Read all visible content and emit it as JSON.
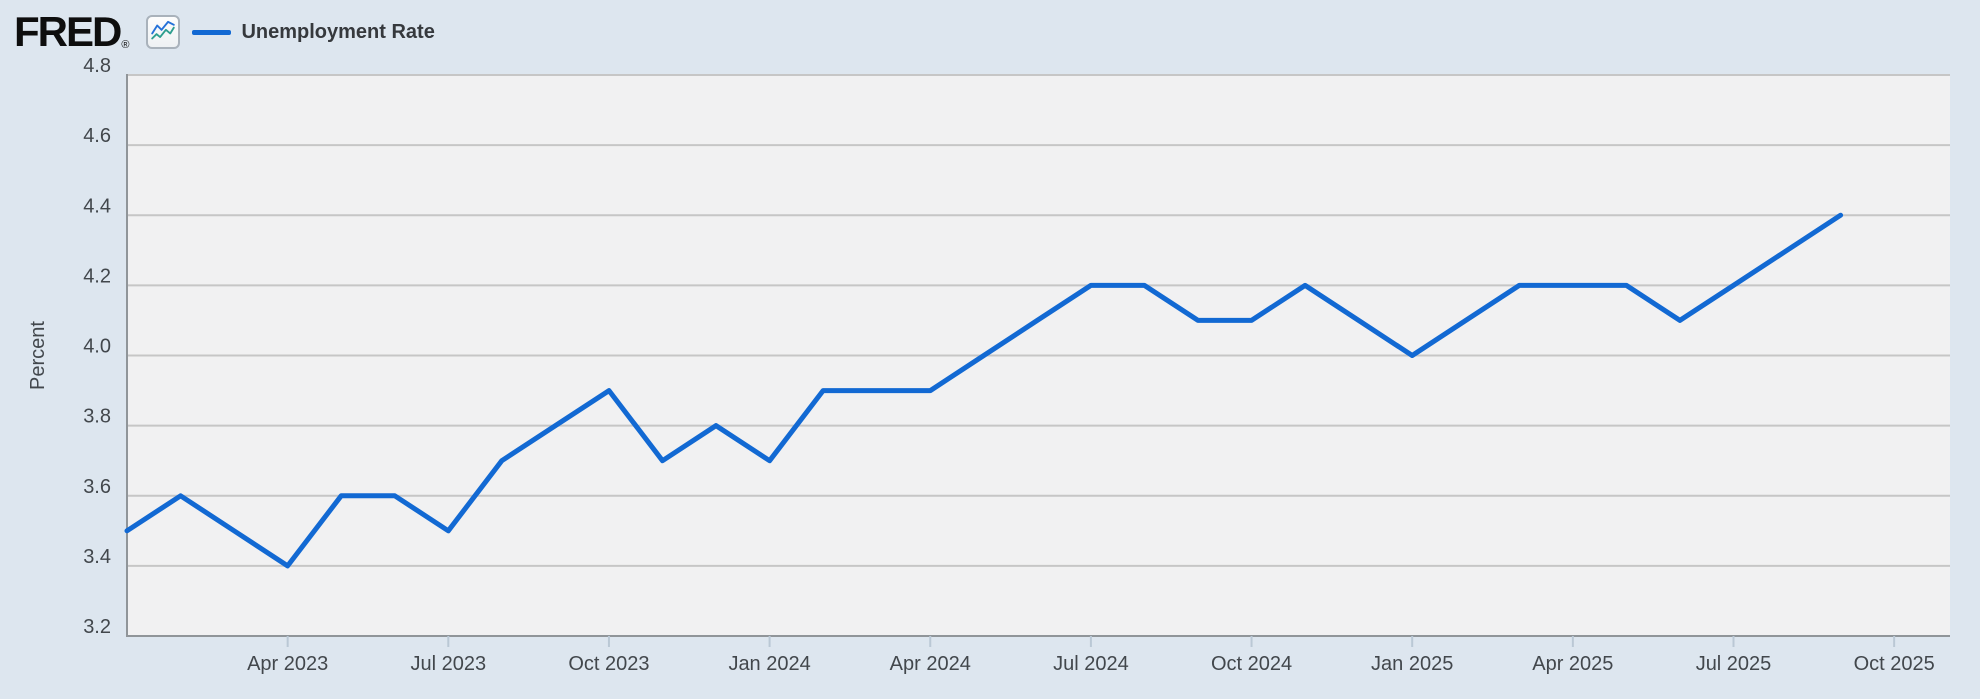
{
  "header": {
    "logo_text": "FRED",
    "registered_mark": "®",
    "legend": {
      "series_label": "Unemployment Rate"
    }
  },
  "colors": {
    "page_bg": "#dde6ef",
    "plot_bg": "#f1f1f2",
    "gridline": "#c6c6c6",
    "axis_line": "#909599",
    "tick_mark": "#bac8d5",
    "axis_text": "#42474c",
    "series_line": "#1269d3",
    "logo_icon_blue": "#2471d9",
    "logo_icon_teal": "#2e9e8f"
  },
  "chart_data": {
    "type": "line",
    "title": "Unemployment Rate",
    "ylabel": "Percent",
    "ylim": [
      3.2,
      4.8
    ],
    "ytick_labels": [
      "3.2",
      "3.4",
      "3.6",
      "3.8",
      "4.0",
      "4.2",
      "4.4",
      "4.6",
      "4.8"
    ],
    "grid": "horizontal",
    "legend_position": "top-left",
    "x": [
      "2023-01",
      "2023-02",
      "2023-03",
      "2023-04",
      "2023-05",
      "2023-06",
      "2023-07",
      "2023-08",
      "2023-09",
      "2023-10",
      "2023-11",
      "2023-12",
      "2024-01",
      "2024-02",
      "2024-03",
      "2024-04",
      "2024-05",
      "2024-06",
      "2024-07",
      "2024-08",
      "2024-09",
      "2024-10",
      "2024-11",
      "2024-12",
      "2025-01",
      "2025-02",
      "2025-03",
      "2025-04",
      "2025-05",
      "2025-06",
      "2025-07",
      "2025-08",
      "2025-09"
    ],
    "values": [
      3.5,
      3.6,
      3.5,
      3.4,
      3.6,
      3.6,
      3.5,
      3.7,
      3.8,
      3.9,
      3.7,
      3.8,
      3.7,
      3.9,
      3.9,
      3.9,
      4.0,
      4.1,
      4.2,
      4.2,
      4.1,
      4.1,
      4.2,
      4.1,
      4.0,
      4.1,
      4.2,
      4.2,
      4.2,
      4.1,
      4.2,
      4.3,
      4.4
    ],
    "xticks": [
      {
        "label": "Apr 2023",
        "month_index": 3
      },
      {
        "label": "Jul 2023",
        "month_index": 6
      },
      {
        "label": "Oct 2023",
        "month_index": 9
      },
      {
        "label": "Jan 2024",
        "month_index": 12
      },
      {
        "label": "Apr 2024",
        "month_index": 15
      },
      {
        "label": "Jul 2024",
        "month_index": 18
      },
      {
        "label": "Oct 2024",
        "month_index": 21
      },
      {
        "label": "Jan 2025",
        "month_index": 24
      },
      {
        "label": "Apr 2025",
        "month_index": 27
      },
      {
        "label": "Jul 2025",
        "month_index": 30
      },
      {
        "label": "Oct 2025",
        "month_index": 33
      }
    ]
  }
}
